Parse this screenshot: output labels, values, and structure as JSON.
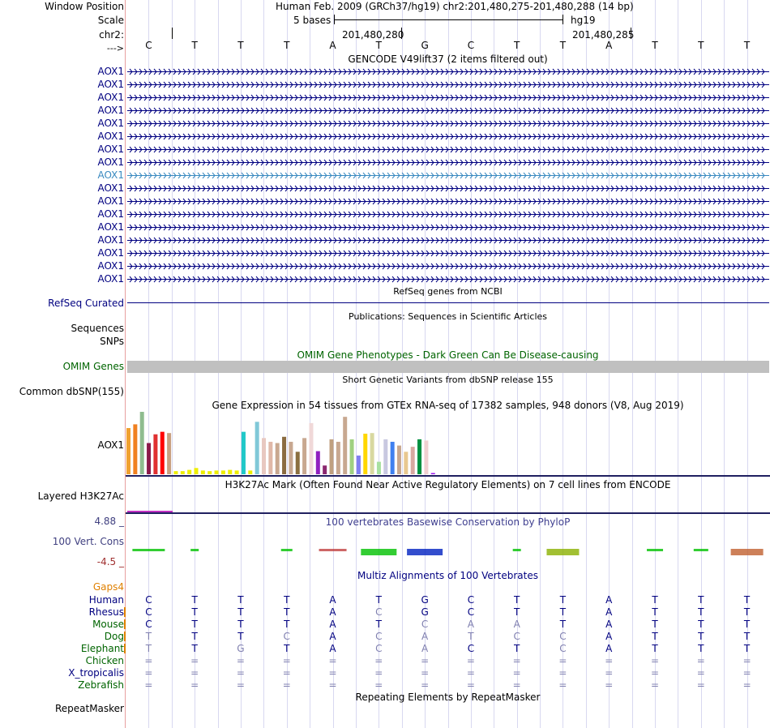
{
  "header": {
    "window_position_label": "Window Position",
    "scale_label": "Scale",
    "chrom_label": "chr2:",
    "strand_label": "--->",
    "title": "Human Feb. 2009 (GRCh37/hg19)   chr2:201,480,275-201,480,288 (14 bp)",
    "scale_text": "5 bases",
    "assembly": "hg19",
    "pos1": "201,480,280",
    "pos2": "201,480,285"
  },
  "sequence": [
    "C",
    "T",
    "T",
    "T",
    "A",
    "T",
    "G",
    "C",
    "T",
    "T",
    "A",
    "T",
    "T",
    "T"
  ],
  "gencode": {
    "title": "GENCODE V49lift37 (2 items filtered out)",
    "gene_label": "AOX1",
    "row_count": 17,
    "selected_row": 8
  },
  "tracks": {
    "refseq_title": "RefSeq genes from NCBI",
    "refseq_label": "RefSeq Curated",
    "pubs_title": "Publications: Sequences in Scientific Articles",
    "pubs_label1": "Sequences",
    "pubs_label2": "SNPs",
    "omim_title": "OMIM Gene Phenotypes - Dark Green Can Be Disease-causing",
    "omim_label": "OMIM Genes",
    "dbsnp_title": "Short Genetic Variants from dbSNP release 155",
    "dbsnp_label": "Common dbSNP(155)",
    "gtex_title": "Gene Expression in 54 tissues from GTEx RNA-seq of 17382 samples, 948 donors (V8, Aug 2019)",
    "gtex_label": "AOX1",
    "h3k27_title": "H3K27Ac Mark (Often Found Near Active Regulatory Elements) on 7 cell lines from ENCODE",
    "h3k27_label": "Layered H3K27Ac",
    "cons_title": "100 vertebrates Basewise Conservation by PhyloP",
    "cons_label": "100 Vert. Cons",
    "cons_max": "4.88 _",
    "cons_min": "-4.5 _",
    "multiz_title": "Multiz Alignments of 100 Vertebrates",
    "gaps_label": "Gaps4",
    "repeat_title": "Repeating Elements by RepeatMasker",
    "repeat_label": "RepeatMasker"
  },
  "species": [
    {
      "name": "Human",
      "color": "#000080",
      "bases": [
        "C",
        "T",
        "T",
        "T",
        "A",
        "T",
        "G",
        "C",
        "T",
        "T",
        "A",
        "T",
        "T",
        "T"
      ]
    },
    {
      "name": "Rhesus",
      "color": "#000080",
      "bases": [
        "C",
        "T",
        "T",
        "T",
        "A",
        "C",
        "G",
        "C",
        "T",
        "T",
        "A",
        "T",
        "T",
        "T"
      ]
    },
    {
      "name": "Mouse",
      "color": "#006400",
      "bases": [
        "C",
        "T",
        "T",
        "T",
        "A",
        "T",
        "C",
        "A",
        "A",
        "T",
        "A",
        "T",
        "T",
        "T"
      ]
    },
    {
      "name": "Dog",
      "color": "#006400",
      "bases": [
        "T",
        "T",
        "T",
        "C",
        "A",
        "C",
        "A",
        "T",
        "C",
        "C",
        "A",
        "T",
        "T",
        "T"
      ]
    },
    {
      "name": "Elephant",
      "color": "#006400",
      "bases": [
        "T",
        "T",
        "G",
        "T",
        "A",
        "C",
        "A",
        "C",
        "T",
        "C",
        "A",
        "T",
        "T",
        "T"
      ]
    },
    {
      "name": "Chicken",
      "color": "#006400",
      "bases": [
        "=",
        "=",
        "=",
        "=",
        "=",
        "=",
        "=",
        "=",
        "=",
        "=",
        "=",
        "=",
        "=",
        "="
      ]
    },
    {
      "name": "X_tropicalis",
      "color": "#000080",
      "bases": [
        "=",
        "=",
        "=",
        "=",
        "=",
        "=",
        "=",
        "=",
        "=",
        "=",
        "=",
        "=",
        "=",
        "="
      ]
    },
    {
      "name": "Zebrafish",
      "color": "#006400",
      "bases": [
        "=",
        "=",
        "=",
        "=",
        "=",
        "=",
        "=",
        "=",
        "=",
        "=",
        "=",
        "=",
        "=",
        "="
      ]
    }
  ],
  "gtex_bars": [
    {
      "v": 0.74,
      "c": "#f0a030"
    },
    {
      "v": 0.8,
      "c": "#f08020"
    },
    {
      "v": 1.0,
      "c": "#8fbc8f"
    },
    {
      "v": 0.5,
      "c": "#8b1a4a"
    },
    {
      "v": 0.64,
      "c": "#e03030"
    },
    {
      "v": 0.68,
      "c": "#ff0000"
    },
    {
      "v": 0.66,
      "c": "#c8a080"
    },
    {
      "v": 0.05,
      "c": "#eeee00"
    },
    {
      "v": 0.05,
      "c": "#eeee00"
    },
    {
      "v": 0.07,
      "c": "#eeee00"
    },
    {
      "v": 0.1,
      "c": "#eeee00"
    },
    {
      "v": 0.06,
      "c": "#eeee00"
    },
    {
      "v": 0.05,
      "c": "#eeee00"
    },
    {
      "v": 0.06,
      "c": "#eeee00"
    },
    {
      "v": 0.06,
      "c": "#eeee00"
    },
    {
      "v": 0.07,
      "c": "#eeee00"
    },
    {
      "v": 0.06,
      "c": "#eeee00"
    },
    {
      "v": 0.68,
      "c": "#20c8c8"
    },
    {
      "v": 0.06,
      "c": "#eeee00"
    },
    {
      "v": 0.84,
      "c": "#80c8d8"
    },
    {
      "v": 0.58,
      "c": "#e8c8c0"
    },
    {
      "v": 0.52,
      "c": "#e0b8a8"
    },
    {
      "v": 0.5,
      "c": "#c8a890"
    },
    {
      "v": 0.6,
      "c": "#8b6b40"
    },
    {
      "v": 0.52,
      "c": "#c8a890"
    },
    {
      "v": 0.36,
      "c": "#8b7040"
    },
    {
      "v": 0.58,
      "c": "#c8a890"
    },
    {
      "v": 0.82,
      "c": "#f0d8d8"
    },
    {
      "v": 0.37,
      "c": "#9020c0"
    },
    {
      "v": 0.14,
      "c": "#8b2870"
    },
    {
      "v": 0.56,
      "c": "#c0a080"
    },
    {
      "v": 0.52,
      "c": "#c8a890"
    },
    {
      "v": 0.92,
      "c": "#c8a890"
    },
    {
      "v": 0.56,
      "c": "#a0d080"
    },
    {
      "v": 0.3,
      "c": "#8080f0"
    },
    {
      "v": 0.65,
      "c": "#ffd700"
    },
    {
      "v": 0.66,
      "c": "#d8d8a0"
    },
    {
      "v": 0.2,
      "c": "#a8e0a0"
    },
    {
      "v": 0.56,
      "c": "#c8c8e0"
    },
    {
      "v": 0.52,
      "c": "#4080f0"
    },
    {
      "v": 0.46,
      "c": "#c8a890"
    },
    {
      "v": 0.36,
      "c": "#e8c890"
    },
    {
      "v": 0.44,
      "c": "#d8a8a0"
    },
    {
      "v": 0.56,
      "c": "#009040"
    },
    {
      "v": 0.54,
      "c": "#f0d0d0"
    },
    {
      "v": 0.02,
      "c": "#a020f0"
    }
  ]
}
